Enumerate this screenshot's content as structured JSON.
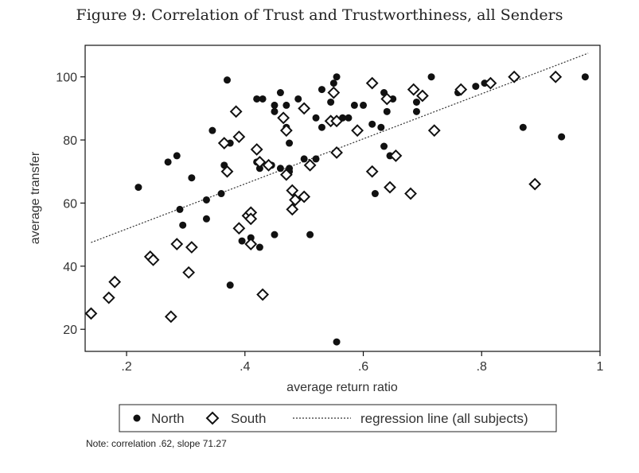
{
  "title": "Figure 9: Correlation of Trust and Trustworthiness, all Senders",
  "note": "Note: correlation .62, slope 71.27",
  "chart_data": {
    "type": "scatter",
    "xlabel": "average return ratio",
    "ylabel": "average transfer",
    "xlim": [
      0.13,
      1.0
    ],
    "ylim": [
      13,
      110
    ],
    "xticks": [
      0.2,
      0.4,
      0.6,
      0.8,
      1.0
    ],
    "xtick_labels": [
      ".2",
      ".4",
      ".6",
      ".8",
      "1"
    ],
    "yticks": [
      20,
      40,
      60,
      80,
      100
    ],
    "ytick_labels": [
      "20",
      "40",
      "60",
      "80",
      "100"
    ],
    "grid": false,
    "legend_position": "bottom",
    "legend": [
      "North",
      "South",
      "regression line (all subjects)"
    ],
    "series": [
      {
        "name": "North",
        "marker": "filled-circle",
        "points": [
          [
            0.22,
            65
          ],
          [
            0.27,
            73
          ],
          [
            0.285,
            75
          ],
          [
            0.29,
            58
          ],
          [
            0.295,
            53
          ],
          [
            0.31,
            68
          ],
          [
            0.335,
            55
          ],
          [
            0.335,
            61
          ],
          [
            0.345,
            83
          ],
          [
            0.36,
            63
          ],
          [
            0.365,
            72
          ],
          [
            0.37,
            99
          ],
          [
            0.375,
            34
          ],
          [
            0.375,
            79
          ],
          [
            0.395,
            48
          ],
          [
            0.41,
            49
          ],
          [
            0.42,
            73
          ],
          [
            0.42,
            93
          ],
          [
            0.425,
            71
          ],
          [
            0.425,
            46
          ],
          [
            0.43,
            93
          ],
          [
            0.445,
            72
          ],
          [
            0.45,
            89
          ],
          [
            0.45,
            91
          ],
          [
            0.45,
            50
          ],
          [
            0.46,
            95
          ],
          [
            0.46,
            71
          ],
          [
            0.47,
            91
          ],
          [
            0.47,
            84
          ],
          [
            0.475,
            79
          ],
          [
            0.475,
            71
          ],
          [
            0.475,
            70
          ],
          [
            0.49,
            93
          ],
          [
            0.5,
            74
          ],
          [
            0.51,
            50
          ],
          [
            0.52,
            87
          ],
          [
            0.52,
            74
          ],
          [
            0.53,
            84
          ],
          [
            0.53,
            96
          ],
          [
            0.545,
            92
          ],
          [
            0.55,
            98
          ],
          [
            0.555,
            100
          ],
          [
            0.555,
            16
          ],
          [
            0.565,
            87
          ],
          [
            0.575,
            87
          ],
          [
            0.585,
            91
          ],
          [
            0.6,
            91
          ],
          [
            0.615,
            85
          ],
          [
            0.62,
            63
          ],
          [
            0.63,
            84
          ],
          [
            0.635,
            95
          ],
          [
            0.635,
            78
          ],
          [
            0.64,
            89
          ],
          [
            0.645,
            75
          ],
          [
            0.65,
            93
          ],
          [
            0.69,
            89
          ],
          [
            0.69,
            92
          ],
          [
            0.715,
            100
          ],
          [
            0.76,
            95
          ],
          [
            0.79,
            97
          ],
          [
            0.805,
            98
          ],
          [
            0.87,
            84
          ],
          [
            0.935,
            81
          ],
          [
            0.975,
            100
          ]
        ]
      },
      {
        "name": "South",
        "marker": "hollow-diamond",
        "points": [
          [
            0.14,
            25
          ],
          [
            0.17,
            30
          ],
          [
            0.18,
            35
          ],
          [
            0.24,
            43
          ],
          [
            0.245,
            42
          ],
          [
            0.275,
            24
          ],
          [
            0.285,
            47
          ],
          [
            0.305,
            38
          ],
          [
            0.31,
            46
          ],
          [
            0.365,
            79
          ],
          [
            0.37,
            70
          ],
          [
            0.385,
            89
          ],
          [
            0.39,
            52
          ],
          [
            0.39,
            81
          ],
          [
            0.405,
            56
          ],
          [
            0.41,
            57
          ],
          [
            0.41,
            47
          ],
          [
            0.41,
            55
          ],
          [
            0.42,
            77
          ],
          [
            0.425,
            73
          ],
          [
            0.43,
            31
          ],
          [
            0.44,
            72
          ],
          [
            0.465,
            87
          ],
          [
            0.47,
            83
          ],
          [
            0.47,
            69
          ],
          [
            0.48,
            64
          ],
          [
            0.48,
            58
          ],
          [
            0.485,
            61
          ],
          [
            0.5,
            90
          ],
          [
            0.5,
            62
          ],
          [
            0.51,
            72
          ],
          [
            0.545,
            86
          ],
          [
            0.55,
            95
          ],
          [
            0.555,
            86
          ],
          [
            0.555,
            76
          ],
          [
            0.59,
            83
          ],
          [
            0.615,
            98
          ],
          [
            0.615,
            70
          ],
          [
            0.64,
            93
          ],
          [
            0.645,
            65
          ],
          [
            0.655,
            75
          ],
          [
            0.68,
            63
          ],
          [
            0.685,
            96
          ],
          [
            0.7,
            94
          ],
          [
            0.72,
            83
          ],
          [
            0.765,
            96
          ],
          [
            0.815,
            98
          ],
          [
            0.855,
            100
          ],
          [
            0.89,
            66
          ],
          [
            0.925,
            100
          ]
        ]
      }
    ],
    "regression_line": {
      "name": "regression line (all subjects)",
      "style": "dotted",
      "x": [
        0.14,
        0.98
      ],
      "y": [
        47.5,
        107.5
      ]
    }
  }
}
